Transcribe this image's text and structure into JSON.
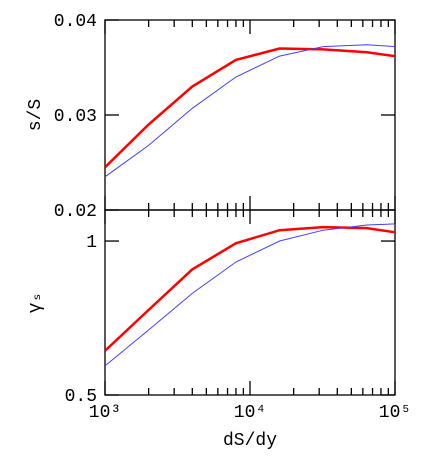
{
  "chart_data": [
    {
      "type": "line",
      "ylabel": "s/S",
      "x": [
        1000,
        2000,
        4000,
        8000,
        16000,
        32000,
        64000,
        100000
      ],
      "xlim": [
        1000,
        100000
      ],
      "xscale": "log",
      "ylim": [
        0.02,
        0.04
      ],
      "yticks": [
        0.02,
        0.03,
        0.04
      ],
      "series": [
        {
          "color": "#ff0000",
          "width": 2.5,
          "values": [
            0.0245,
            0.029,
            0.033,
            0.0358,
            0.037,
            0.0369,
            0.0366,
            0.0362
          ]
        },
        {
          "color": "#4040ff",
          "width": 1,
          "values": [
            0.0235,
            0.0268,
            0.0307,
            0.034,
            0.0362,
            0.0372,
            0.0374,
            0.0372
          ]
        }
      ]
    },
    {
      "type": "line",
      "ylabel": "γₛ",
      "xlabel": "dS/dy",
      "x": [
        1000,
        2000,
        4000,
        8000,
        16000,
        32000,
        64000,
        100000
      ],
      "xlim": [
        1000,
        100000
      ],
      "xscale": "log",
      "xticks": [
        {
          "value": 1000,
          "label": "10³"
        },
        {
          "value": 10000,
          "label": "10⁴"
        },
        {
          "value": 100000,
          "label": "10⁵"
        }
      ],
      "ylim": [
        0.5,
        1.15
      ],
      "yscale": "log",
      "yticks": [
        0.5,
        1
      ],
      "series": [
        {
          "color": "#ff0000",
          "width": 2.5,
          "values": [
            0.61,
            0.733,
            0.88,
            0.99,
            1.05,
            1.065,
            1.06,
            1.04
          ]
        },
        {
          "color": "#4040ff",
          "width": 1,
          "values": [
            0.57,
            0.67,
            0.79,
            0.91,
            1.0,
            1.05,
            1.075,
            1.08
          ]
        }
      ]
    }
  ]
}
